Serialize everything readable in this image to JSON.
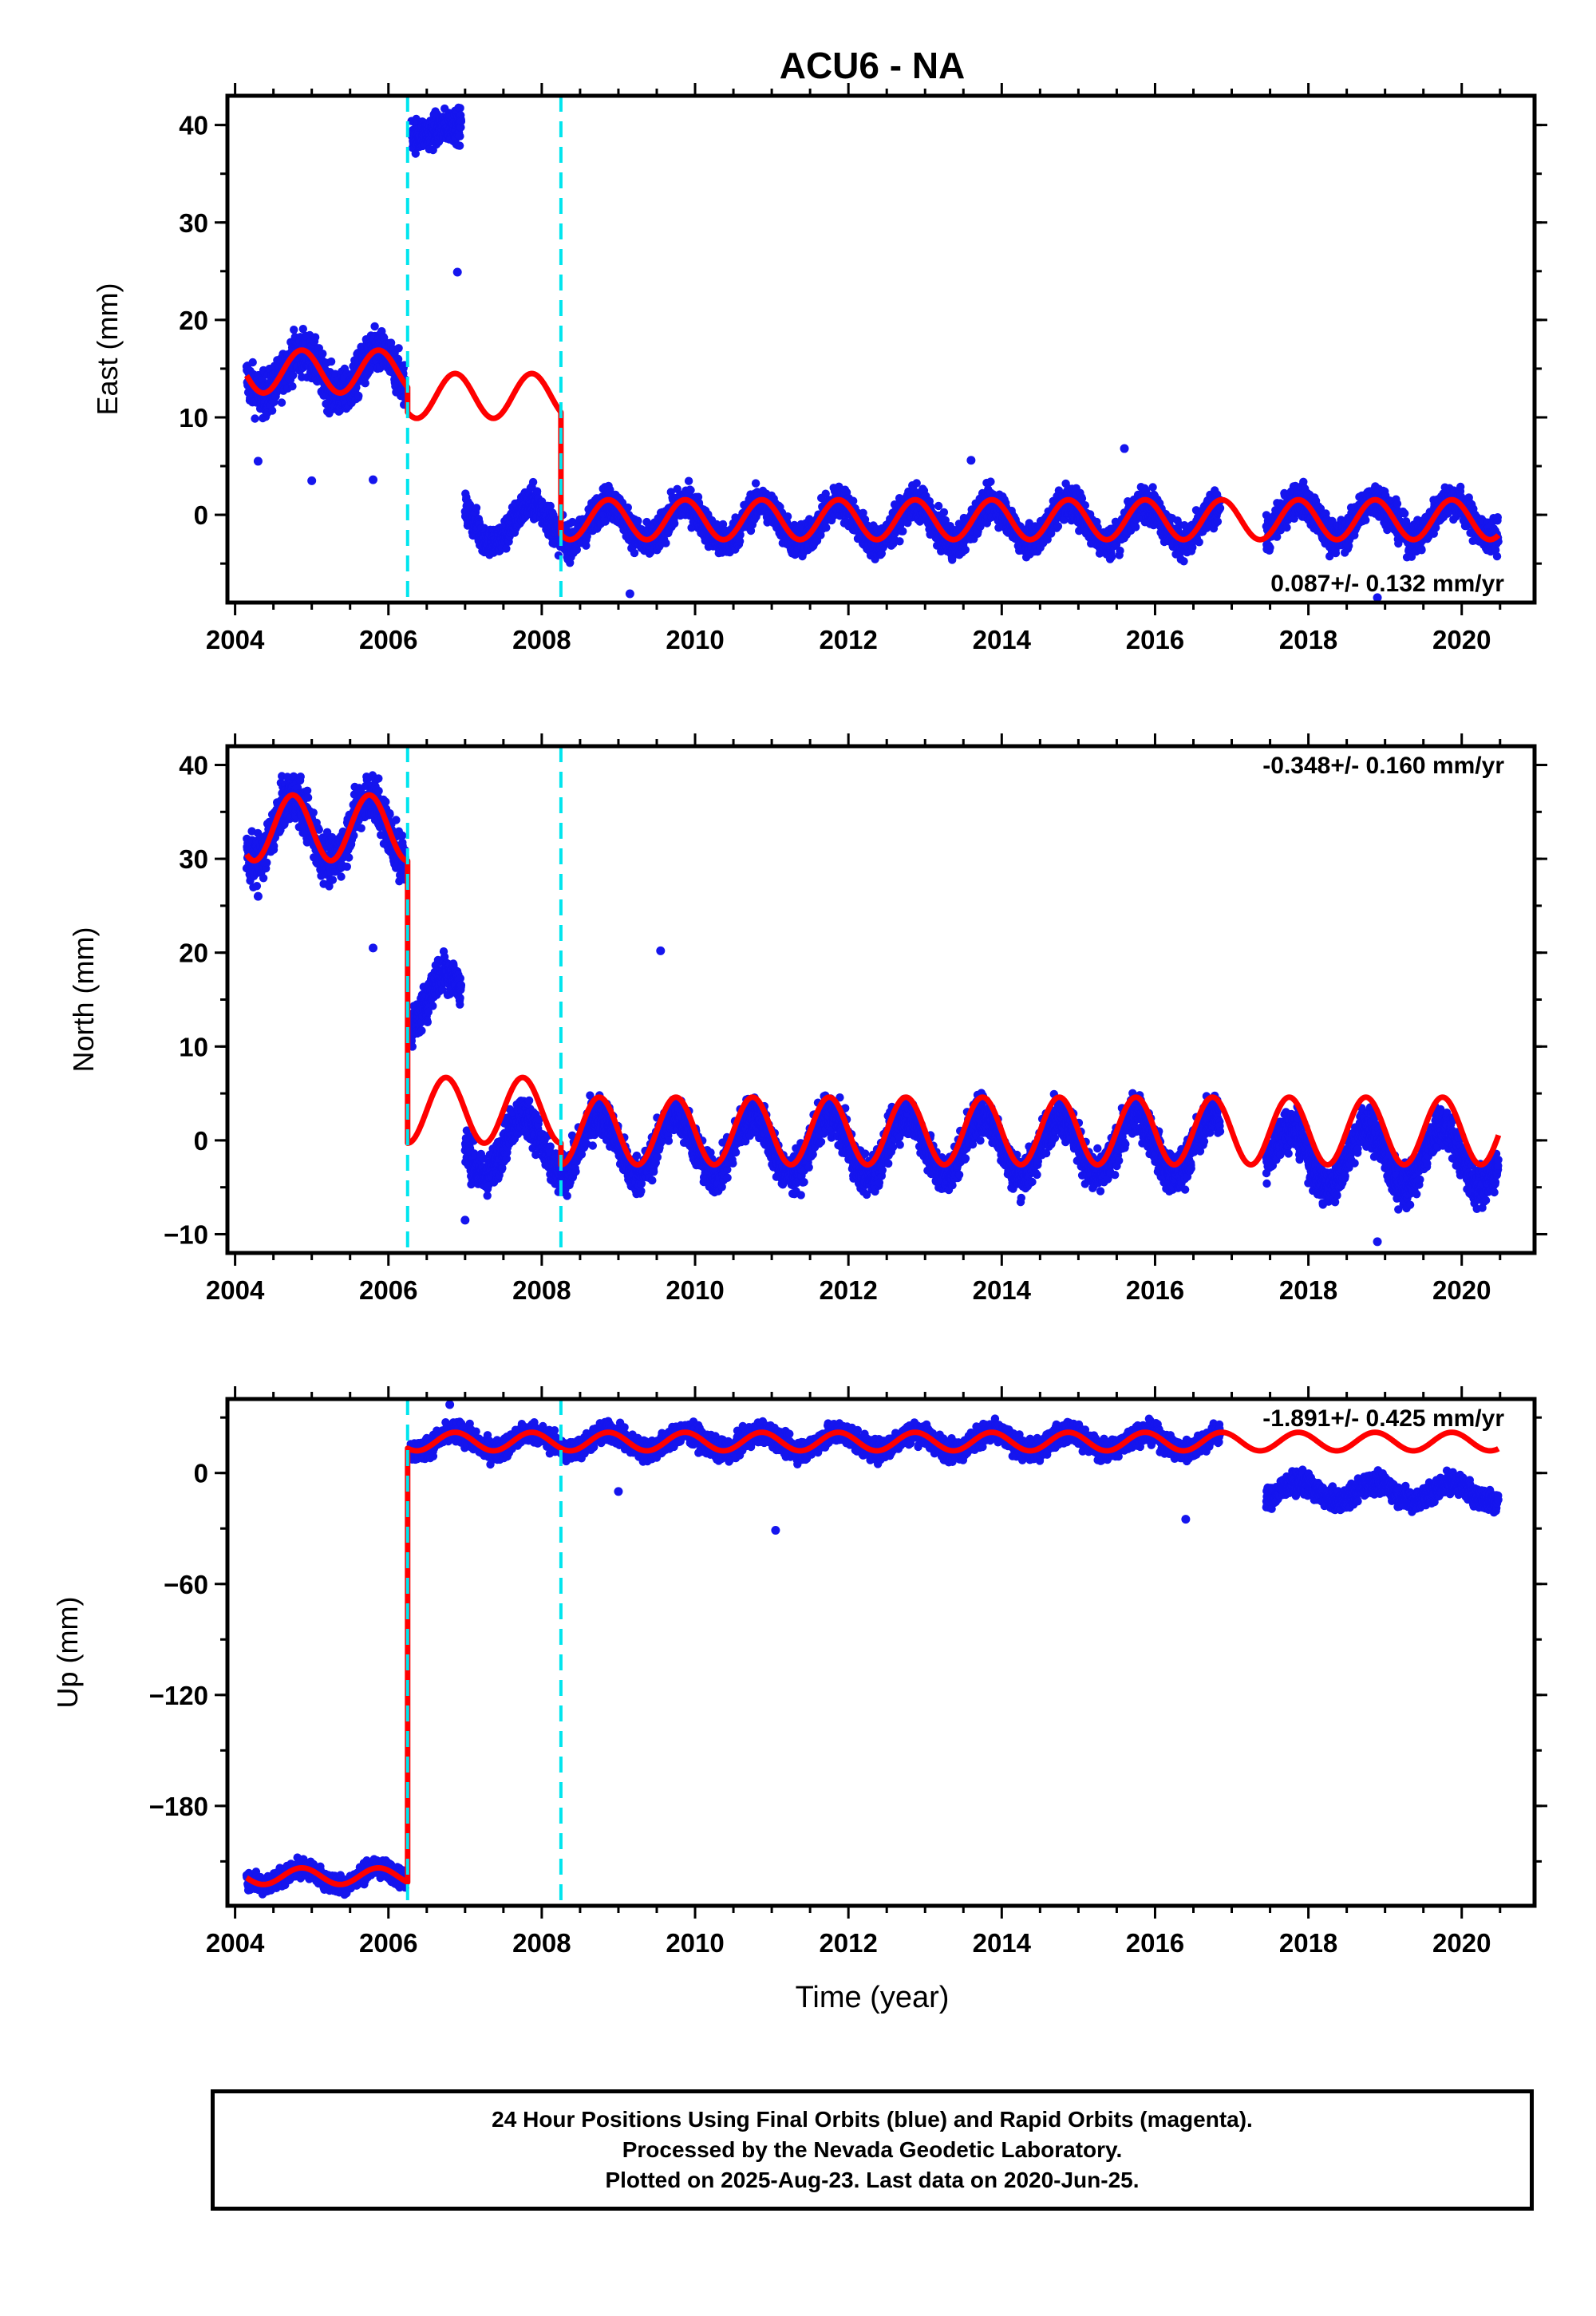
{
  "title": "ACU6 - NA",
  "xlabel": "Time (year)",
  "footer": {
    "line1": "24 Hour Positions Using Final Orbits (blue) and Rapid Orbits (magenta).",
    "line2": "Processed by the Nevada Geodetic Laboratory.",
    "line3": "Plotted on 2025-Aug-23. Last data on 2020-Jun-25."
  },
  "colors": {
    "data": "#1515ee",
    "model": "#ff0000",
    "steps": "#00e5ee",
    "frame": "#000000"
  },
  "chart_data": [
    {
      "type": "scatter",
      "component": "east",
      "ylabel": "East (mm)",
      "rate_label": "0.087+/- 0.132 mm/yr",
      "xlim": [
        2003.9,
        2020.95
      ],
      "ylim": [
        -9,
        43
      ],
      "yticks": [
        0,
        10,
        20,
        30,
        40
      ],
      "xticks": [
        2004,
        2006,
        2008,
        2010,
        2012,
        2014,
        2016,
        2018,
        2020
      ],
      "grid": false,
      "step_epochs": [
        2006.25,
        2008.25
      ],
      "series": [
        {
          "values_description": "daily positions",
          "segments": [
            {
              "start": 2004.15,
              "end": 2006.22,
              "base": 14.5,
              "amp": 2.2,
              "noise": 1.6
            },
            {
              "start": 2006.3,
              "end": 2006.95,
              "base": 39.5,
              "amp": 0.5,
              "noise": 1.2
            },
            {
              "start": 2007.0,
              "end": 2016.85,
              "base": -0.8,
              "amp": 2.0,
              "noise": 1.2
            },
            {
              "start": 2017.45,
              "end": 2020.48,
              "base": -0.4,
              "amp": 2.0,
              "noise": 1.2
            }
          ],
          "outliers": [
            [
              2004.3,
              5.5
            ],
            [
              2005.0,
              3.5
            ],
            [
              2005.8,
              3.6
            ],
            [
              2006.9,
              24.9
            ],
            [
              2009.15,
              -8.1
            ],
            [
              2013.6,
              5.6
            ],
            [
              2015.6,
              6.8
            ],
            [
              2018.9,
              -8.5
            ]
          ]
        },
        {
          "values_description": "model fit",
          "pieces": [
            {
              "start": 2004.15,
              "end": 2006.25,
              "base": 14.7,
              "amp": 2.2,
              "phase": 0.62
            },
            {
              "start": 2006.25,
              "end": 2008.25,
              "base": 12.2,
              "amp": 2.3,
              "phase": 0.62
            },
            {
              "start": 2008.25,
              "end": 2020.48,
              "base": -0.5,
              "amp": 2.05,
              "phase": 0.62
            }
          ]
        }
      ]
    },
    {
      "type": "scatter",
      "component": "north",
      "ylabel": "North (mm)",
      "rate_label": "-0.348+/- 0.160 mm/yr",
      "xlim": [
        2003.9,
        2020.95
      ],
      "ylim": [
        -12,
        42
      ],
      "yticks": [
        -10,
        0,
        10,
        20,
        30,
        40
      ],
      "xticks": [
        2004,
        2006,
        2008,
        2010,
        2012,
        2014,
        2016,
        2018,
        2020
      ],
      "grid": false,
      "step_epochs": [
        2006.25,
        2008.25
      ],
      "series": [
        {
          "values_description": "daily positions",
          "segments": [
            {
              "start": 2004.15,
              "end": 2006.22,
              "base": 33.2,
              "amp": 3.5,
              "noise": 1.8
            },
            {
              "start": 2006.28,
              "end": 2006.95,
              "base": 15.0,
              "amp": 3.0,
              "noise": 1.5
            },
            {
              "start": 2007.0,
              "end": 2016.85,
              "base": -0.5,
              "amp": 3.2,
              "noise": 1.5
            },
            {
              "start": 2017.45,
              "end": 2020.48,
              "base": -1.8,
              "amp": 3.2,
              "noise": 1.5
            }
          ],
          "outliers": [
            [
              2005.8,
              20.5
            ],
            [
              2009.55,
              20.2
            ],
            [
              2018.9,
              -10.8
            ],
            [
              2007.0,
              -8.5
            ],
            [
              2004.3,
              26.0
            ]
          ]
        },
        {
          "values_description": "model fit",
          "pieces": [
            {
              "start": 2004.15,
              "end": 2006.25,
              "base": 33.3,
              "amp": 3.5,
              "phase": 0.5
            },
            {
              "start": 2006.25,
              "end": 2008.25,
              "base": 3.2,
              "amp": 3.5,
              "phase": 0.5
            },
            {
              "start": 2008.25,
              "end": 2020.48,
              "base": 1.0,
              "amp": 3.6,
              "phase": 0.5
            }
          ]
        }
      ]
    },
    {
      "type": "scatter",
      "component": "up",
      "ylabel": "Up (mm)",
      "rate_label": "-1.891+/- 0.425 mm/yr",
      "xlim": [
        2003.9,
        2020.95
      ],
      "ylim": [
        -234,
        40
      ],
      "yticks": [
        -180,
        -120,
        -60,
        0
      ],
      "xticks": [
        2004,
        2006,
        2008,
        2010,
        2012,
        2014,
        2016,
        2018,
        2020
      ],
      "grid": false,
      "step_epochs": [
        2006.25,
        2008.25
      ],
      "series": [
        {
          "values_description": "daily positions",
          "segments": [
            {
              "start": 2004.15,
              "end": 2006.22,
              "base": -218.0,
              "amp": 4.5,
              "noise": 3.5
            },
            {
              "start": 2006.28,
              "end": 2016.85,
              "base": 17.0,
              "amp": 5.0,
              "noise": 4.0
            },
            {
              "start": 2017.45,
              "end": 2020.48,
              "base": -10.0,
              "amp": 5.0,
              "noise": 4.0
            }
          ],
          "outliers": [
            [
              2006.8,
              37.0
            ],
            [
              2011.05,
              -31.0
            ],
            [
              2016.4,
              -25.0
            ],
            [
              2009.0,
              -10.0
            ]
          ]
        },
        {
          "values_description": "model fit",
          "pieces": [
            {
              "start": 2004.15,
              "end": 2006.25,
              "base": -218.0,
              "amp": 4.5,
              "phase": 0.62
            },
            {
              "start": 2006.25,
              "end": 2020.48,
              "base": 17.0,
              "amp": 5.0,
              "phase": 0.62
            }
          ]
        }
      ]
    }
  ]
}
